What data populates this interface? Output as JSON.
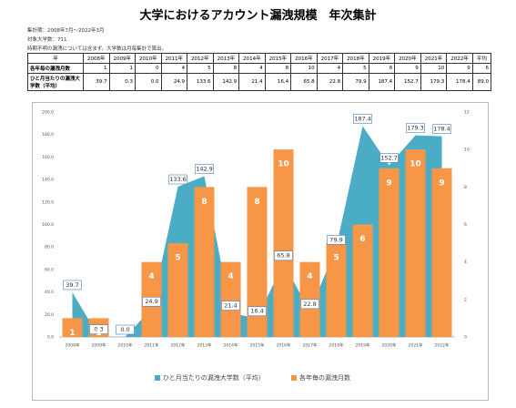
{
  "header": {
    "title": "大学におけるアカウント漏洩規模　年次集計",
    "notes": [
      "集計期：2008年7月～2022年3月",
      "対象大学数：711",
      "時期不明の漏洩については含まず。大学数は月毎集計で算出。"
    ]
  },
  "table": {
    "header": [
      "年",
      "2008年",
      "2009年",
      "2010年",
      "2011年",
      "2012年",
      "2013年",
      "2014年",
      "2015年",
      "2016年",
      "2017年",
      "2018年",
      "2019年",
      "2020年",
      "2021年",
      "2022年",
      "平均"
    ],
    "rows": [
      [
        "各年毎の漏洩月数",
        "1",
        "1",
        "0",
        "4",
        "5",
        "8",
        "4",
        "8",
        "10",
        "4",
        "5",
        "6",
        "9",
        "10",
        "9",
        "6"
      ],
      [
        "ひと月当たりの漏洩大学数（平均）",
        "39.7",
        "0.3",
        "0.0",
        "24.9",
        "133.6",
        "142.9",
        "21.4",
        "16.4",
        "65.8",
        "22.8",
        "79.9",
        "187.4",
        "152.7",
        "179.3",
        "178.4",
        "89.0"
      ]
    ]
  },
  "chart_data": {
    "type": "bar-area",
    "categories": [
      "2008年",
      "2009年",
      "2010年",
      "2011年",
      "2012年",
      "2013年",
      "2014年",
      "2015年",
      "2016年",
      "2017年",
      "2018年",
      "2019年",
      "2020年",
      "2021年",
      "2022年"
    ],
    "series": [
      {
        "name": "ひと月当たりの漏洩大学数（平均）",
        "color": "#4bacc6",
        "type": "area",
        "values": [
          39.7,
          0.3,
          0,
          24.9,
          133.6,
          142.9,
          21.4,
          16.4,
          65.8,
          22.8,
          79.9,
          187.4,
          152.7,
          179.3,
          178.4
        ],
        "value_labels": [
          "39.7",
          "0.3",
          "0.0",
          "24.9",
          "133.6",
          "142.9",
          "21.4",
          "16.4",
          "65.8",
          "22.8",
          "79.9",
          "187.4",
          "152.7",
          "179.3",
          "178.4"
        ]
      },
      {
        "name": "各年毎の漏洩月数",
        "color": "#f79646",
        "type": "bar",
        "axis": "y2",
        "values": [
          1,
          1,
          0,
          4,
          5,
          8,
          4,
          8,
          10,
          4,
          5,
          6,
          9,
          10,
          9
        ]
      }
    ],
    "ylim": [
      0,
      200
    ],
    "yticks": [
      {
        "value": 0,
        "label": "0.0"
      },
      {
        "value": 20,
        "label": "20.0"
      },
      {
        "value": 40,
        "label": "40.0"
      },
      {
        "value": 60,
        "label": "60.0"
      },
      {
        "value": 80,
        "label": "80.0"
      },
      {
        "value": 100,
        "label": "100.0"
      },
      {
        "value": 120,
        "label": "120.0"
      },
      {
        "value": 140,
        "label": "140.0"
      },
      {
        "value": 160,
        "label": "160.0"
      },
      {
        "value": 180,
        "label": "180.0"
      },
      {
        "value": 200,
        "label": "200.0"
      }
    ],
    "y2lim": [
      0,
      12
    ],
    "y2ticks": [
      0,
      2,
      4,
      6,
      8,
      10,
      12
    ],
    "legend": "bottom"
  }
}
